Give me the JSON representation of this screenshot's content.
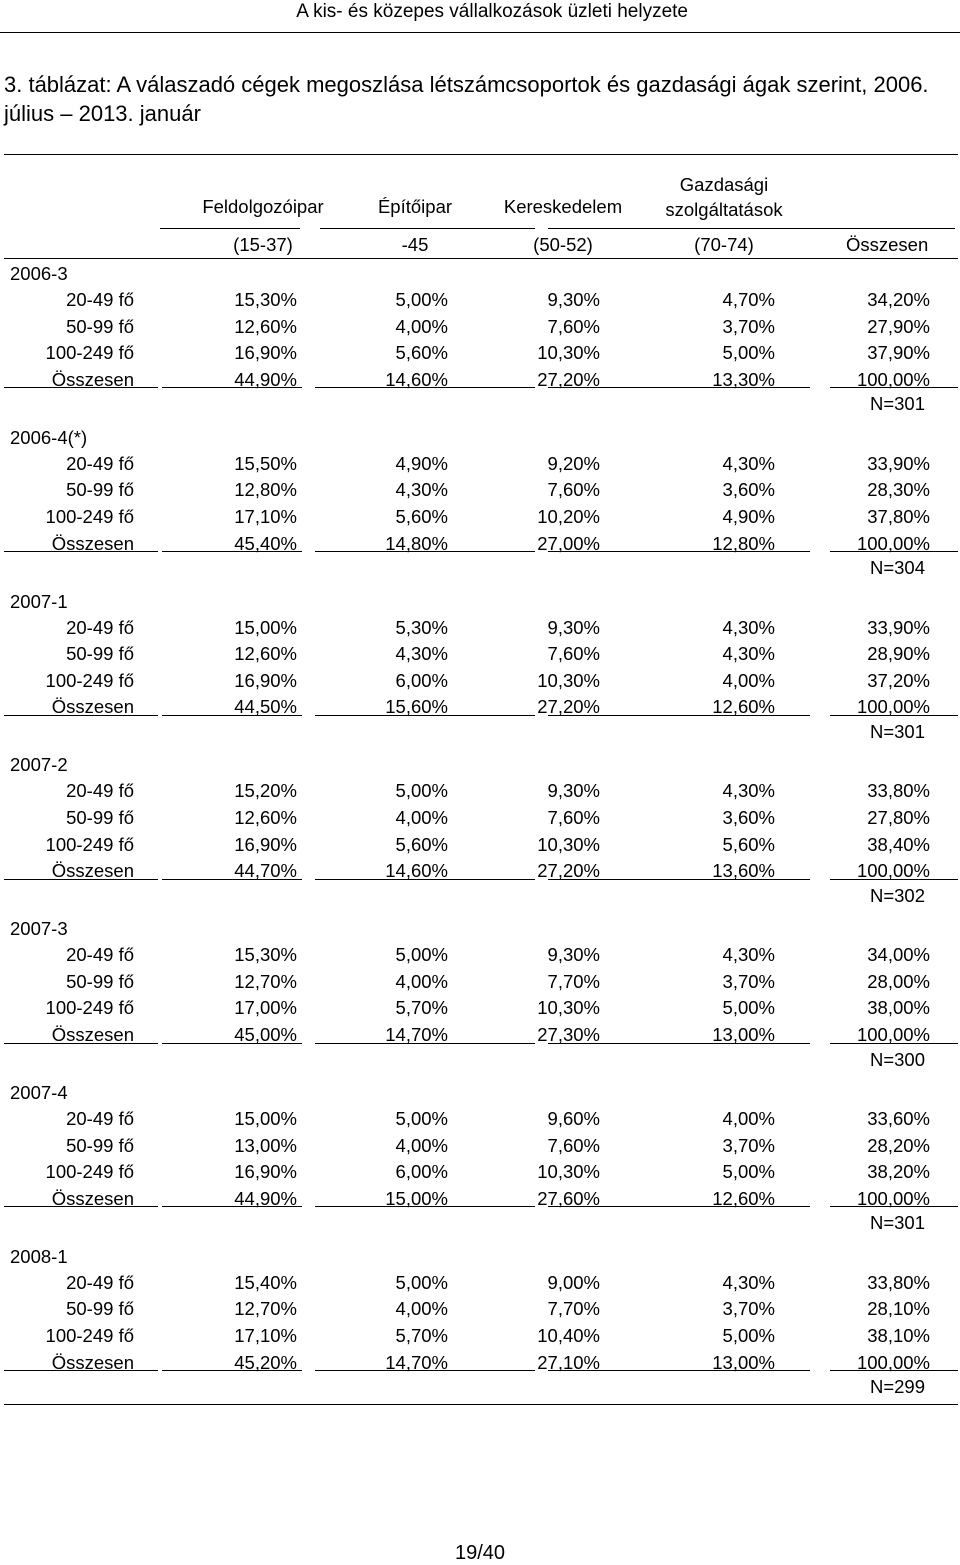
{
  "header": {
    "running_title": "A kis- és közepes vállalkozások üzleti helyzete"
  },
  "title": "3. táblázat: A válaszadó cégek megoszlása létszámcsoportok és gazdasági ágak szerint, 2006. július – 2013. január",
  "table": {
    "columns": [
      {
        "name": "Feldolgozóipar",
        "code": "(15-37)"
      },
      {
        "name": "Építőipar",
        "code": "-45"
      },
      {
        "name": "Kereskedelem",
        "code": "(50-52)"
      },
      {
        "name": "Gazdasági szolgáltatások",
        "code": "(70-74)"
      }
    ],
    "total_header": "Összesen",
    "groups": [
      {
        "period": "2006-3",
        "n": "N=301",
        "rows": [
          {
            "label": "20-49 fő",
            "values": [
              "15,30%",
              "5,00%",
              "9,30%",
              "4,70%",
              "34,20%"
            ]
          },
          {
            "label": "50-99 fő",
            "values": [
              "12,60%",
              "4,00%",
              "7,60%",
              "3,70%",
              "27,90%"
            ]
          },
          {
            "label": "100-249 fő",
            "values": [
              "16,90%",
              "5,60%",
              "10,30%",
              "5,00%",
              "37,90%"
            ]
          },
          {
            "label": "Összesen",
            "values": [
              "44,90%",
              "14,60%",
              "27,20%",
              "13,30%",
              "100,00%"
            ]
          }
        ]
      },
      {
        "period": "2006-4(*)",
        "n": "N=304",
        "rows": [
          {
            "label": "20-49 fő",
            "values": [
              "15,50%",
              "4,90%",
              "9,20%",
              "4,30%",
              "33,90%"
            ]
          },
          {
            "label": "50-99 fő",
            "values": [
              "12,80%",
              "4,30%",
              "7,60%",
              "3,60%",
              "28,30%"
            ]
          },
          {
            "label": "100-249 fő",
            "values": [
              "17,10%",
              "5,60%",
              "10,20%",
              "4,90%",
              "37,80%"
            ]
          },
          {
            "label": "Összesen",
            "values": [
              "45,40%",
              "14,80%",
              "27,00%",
              "12,80%",
              "100,00%"
            ]
          }
        ]
      },
      {
        "period": "2007-1",
        "n": "N=301",
        "rows": [
          {
            "label": "20-49 fő",
            "values": [
              "15,00%",
              "5,30%",
              "9,30%",
              "4,30%",
              "33,90%"
            ]
          },
          {
            "label": "50-99 fő",
            "values": [
              "12,60%",
              "4,30%",
              "7,60%",
              "4,30%",
              "28,90%"
            ]
          },
          {
            "label": "100-249 fő",
            "values": [
              "16,90%",
              "6,00%",
              "10,30%",
              "4,00%",
              "37,20%"
            ]
          },
          {
            "label": "Összesen",
            "values": [
              "44,50%",
              "15,60%",
              "27,20%",
              "12,60%",
              "100,00%"
            ]
          }
        ]
      },
      {
        "period": "2007-2",
        "n": "N=302",
        "rows": [
          {
            "label": "20-49 fő",
            "values": [
              "15,20%",
              "5,00%",
              "9,30%",
              "4,30%",
              "33,80%"
            ]
          },
          {
            "label": "50-99 fő",
            "values": [
              "12,60%",
              "4,00%",
              "7,60%",
              "3,60%",
              "27,80%"
            ]
          },
          {
            "label": "100-249 fő",
            "values": [
              "16,90%",
              "5,60%",
              "10,30%",
              "5,60%",
              "38,40%"
            ]
          },
          {
            "label": "Összesen",
            "values": [
              "44,70%",
              "14,60%",
              "27,20%",
              "13,60%",
              "100,00%"
            ]
          }
        ]
      },
      {
        "period": "2007-3",
        "n": "N=300",
        "rows": [
          {
            "label": "20-49 fő",
            "values": [
              "15,30%",
              "5,00%",
              "9,30%",
              "4,30%",
              "34,00%"
            ]
          },
          {
            "label": "50-99 fő",
            "values": [
              "12,70%",
              "4,00%",
              "7,70%",
              "3,70%",
              "28,00%"
            ]
          },
          {
            "label": "100-249 fő",
            "values": [
              "17,00%",
              "5,70%",
              "10,30%",
              "5,00%",
              "38,00%"
            ]
          },
          {
            "label": "Összesen",
            "values": [
              "45,00%",
              "14,70%",
              "27,30%",
              "13,00%",
              "100,00%"
            ]
          }
        ]
      },
      {
        "period": "2007-4",
        "n": "N=301",
        "rows": [
          {
            "label": "20-49 fő",
            "values": [
              "15,00%",
              "5,00%",
              "9,60%",
              "4,00%",
              "33,60%"
            ]
          },
          {
            "label": "50-99 fő",
            "values": [
              "13,00%",
              "4,00%",
              "7,60%",
              "3,70%",
              "28,20%"
            ]
          },
          {
            "label": "100-249 fő",
            "values": [
              "16,90%",
              "6,00%",
              "10,30%",
              "5,00%",
              "38,20%"
            ]
          },
          {
            "label": "Összesen",
            "values": [
              "44,90%",
              "15,00%",
              "27,60%",
              "12,60%",
              "100,00%"
            ]
          }
        ]
      },
      {
        "period": "2008-1",
        "n": "N=299",
        "rows": [
          {
            "label": "20-49 fő",
            "values": [
              "15,40%",
              "5,00%",
              "9,00%",
              "4,30%",
              "33,80%"
            ]
          },
          {
            "label": "50-99 fő",
            "values": [
              "12,70%",
              "4,00%",
              "7,70%",
              "3,70%",
              "28,10%"
            ]
          },
          {
            "label": "100-249 fő",
            "values": [
              "17,10%",
              "5,70%",
              "10,40%",
              "5,00%",
              "38,10%"
            ]
          },
          {
            "label": "Összesen",
            "values": [
              "45,20%",
              "14,70%",
              "27,10%",
              "13,00%",
              "100,00%"
            ]
          }
        ]
      }
    ]
  },
  "footer": {
    "page": "19/40"
  }
}
